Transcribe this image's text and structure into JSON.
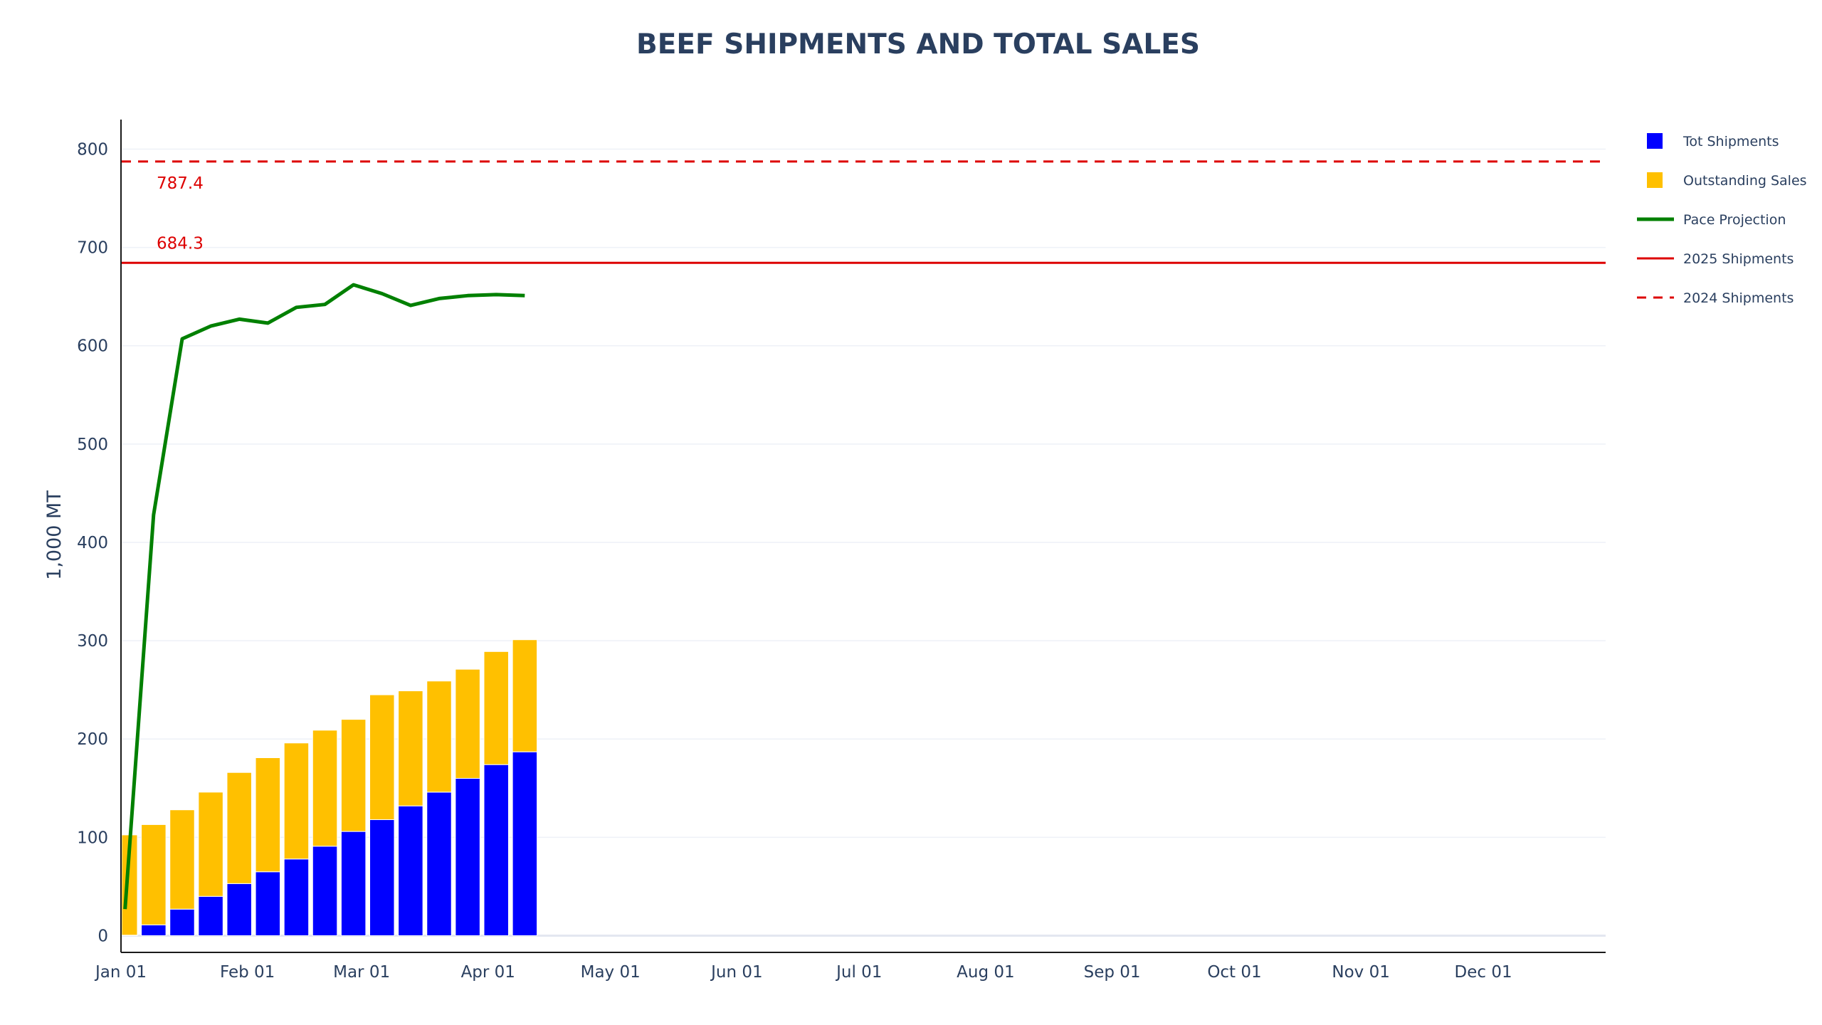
{
  "chart_data": {
    "type": "bar",
    "title": "BEEF SHIPMENTS AND TOTAL SALES",
    "ylabel": "1,000 MT",
    "xlabel": "",
    "ylim": [
      -17,
      830
    ],
    "yticks": [
      0,
      100,
      200,
      300,
      400,
      500,
      600,
      700,
      800
    ],
    "xlim": [
      "2025-01-01",
      "2025-12-31"
    ],
    "xticks": [
      {
        "date": "2025-01-01",
        "label": "Jan 01"
      },
      {
        "date": "2025-02-01",
        "label": "Feb 01"
      },
      {
        "date": "2025-03-01",
        "label": "Mar 01"
      },
      {
        "date": "2025-04-01",
        "label": "Apr 01"
      },
      {
        "date": "2025-05-01",
        "label": "May 01"
      },
      {
        "date": "2025-06-01",
        "label": "Jun 01"
      },
      {
        "date": "2025-07-01",
        "label": "Jul 01"
      },
      {
        "date": "2025-08-01",
        "label": "Aug 01"
      },
      {
        "date": "2025-09-01",
        "label": "Sep 01"
      },
      {
        "date": "2025-10-01",
        "label": "Oct 01"
      },
      {
        "date": "2025-11-01",
        "label": "Nov 01"
      },
      {
        "date": "2025-12-01",
        "label": "Dec 01"
      }
    ],
    "grid": true,
    "legend_position": "right",
    "bar_mode": "stack",
    "week_dates": [
      "2025-01-02",
      "2025-01-09",
      "2025-01-16",
      "2025-01-23",
      "2025-01-30",
      "2025-02-06",
      "2025-02-13",
      "2025-02-20",
      "2025-02-27",
      "2025-03-06",
      "2025-03-13",
      "2025-03-20",
      "2025-03-27",
      "2025-04-03",
      "2025-04-10"
    ],
    "series": [
      {
        "name": "Tot Shipments",
        "kind": "bar",
        "color": "#0000ff",
        "values": [
          0.5,
          11,
          27,
          40,
          53,
          65,
          78,
          91,
          106,
          118,
          132,
          146,
          160,
          174,
          187
        ]
      },
      {
        "name": "Outstanding Sales",
        "kind": "bar",
        "color": "#ffc000",
        "values": [
          102,
          102,
          101,
          106,
          113,
          116,
          118,
          118,
          114,
          127,
          117,
          113,
          111,
          115,
          114
        ]
      },
      {
        "name": "Pace Projection",
        "kind": "line",
        "color": "#008000",
        "values": [
          27,
          428,
          607,
          620,
          627,
          623,
          639,
          642,
          662,
          653,
          641,
          648,
          651,
          652,
          651
        ]
      }
    ],
    "reference_lines": [
      {
        "name": "2025 Shipments",
        "value": 684.3,
        "label": "684.3",
        "color": "#dd0000",
        "dash": "solid"
      },
      {
        "name": "2024 Shipments",
        "value": 787.4,
        "label": "787.4",
        "color": "#dd0000",
        "dash": "dashed"
      }
    ],
    "legend": [
      {
        "name": "Tot Shipments",
        "symbol": "square",
        "color": "#0000ff"
      },
      {
        "name": "Outstanding Sales",
        "symbol": "square",
        "color": "#ffc000"
      },
      {
        "name": "Pace Projection",
        "symbol": "line",
        "color": "#008000"
      },
      {
        "name": "2025 Shipments",
        "symbol": "line",
        "color": "#dd0000"
      },
      {
        "name": "2024 Shipments",
        "symbol": "dash",
        "color": "#dd0000"
      }
    ]
  }
}
